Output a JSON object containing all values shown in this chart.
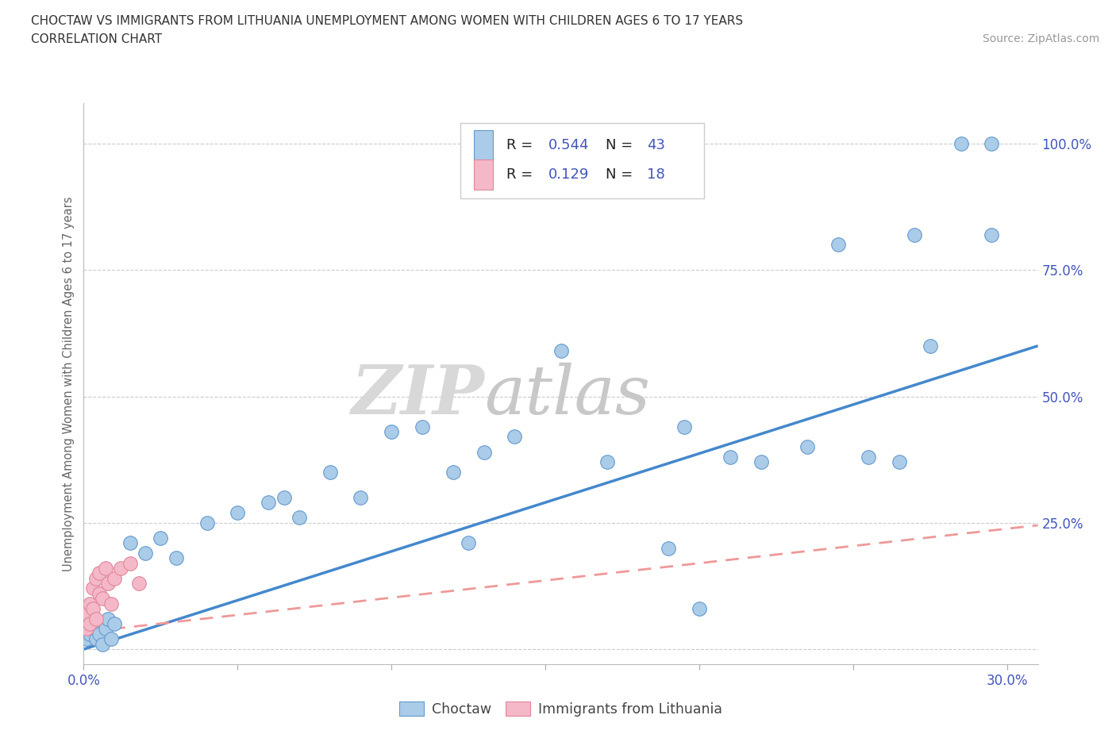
{
  "title_line1": "CHOCTAW VS IMMIGRANTS FROM LITHUANIA UNEMPLOYMENT AMONG WOMEN WITH CHILDREN AGES 6 TO 17 YEARS",
  "title_line2": "CORRELATION CHART",
  "source_text": "Source: ZipAtlas.com",
  "ylabel": "Unemployment Among Women with Children Ages 6 to 17 years",
  "xlim": [
    0.0,
    0.31
  ],
  "ylim": [
    -0.03,
    1.08
  ],
  "choctaw_color": "#aacce8",
  "choctaw_edge_color": "#6699cc",
  "immigrants_color": "#f5b8c8",
  "immigrants_edge_color": "#dd8899",
  "choctaw_line_color": "#4488cc",
  "immigrants_line_color": "#ee9999",
  "bg_color": "#ffffff",
  "grid_color": "#cccccc",
  "title_color": "#333333",
  "axis_tick_color": "#4455bb",
  "axis_label_color": "#666666",
  "legend_R1": "0.544",
  "legend_N1": "43",
  "legend_R2": "0.129",
  "legend_N2": "18",
  "choctaw_x": [
    0.001,
    0.002,
    0.003,
    0.004,
    0.005,
    0.006,
    0.007,
    0.008,
    0.009,
    0.01,
    0.015,
    0.02,
    0.025,
    0.03,
    0.04,
    0.05,
    0.06,
    0.065,
    0.07,
    0.08,
    0.09,
    0.1,
    0.11,
    0.12,
    0.13,
    0.14,
    0.155,
    0.17,
    0.19,
    0.2,
    0.21,
    0.22,
    0.235,
    0.245,
    0.255,
    0.265,
    0.275,
    0.285,
    0.295,
    0.125,
    0.195,
    0.27,
    0.295
  ],
  "choctaw_y": [
    0.02,
    0.03,
    0.04,
    0.02,
    0.03,
    0.01,
    0.04,
    0.06,
    0.02,
    0.05,
    0.21,
    0.19,
    0.22,
    0.18,
    0.25,
    0.27,
    0.29,
    0.3,
    0.26,
    0.35,
    0.3,
    0.43,
    0.44,
    0.35,
    0.39,
    0.42,
    0.59,
    0.37,
    0.2,
    0.08,
    0.38,
    0.37,
    0.4,
    0.8,
    0.38,
    0.37,
    0.6,
    1.0,
    1.0,
    0.21,
    0.44,
    0.82,
    0.82
  ],
  "immigrants_x": [
    0.001,
    0.001,
    0.002,
    0.002,
    0.003,
    0.003,
    0.004,
    0.004,
    0.005,
    0.005,
    0.006,
    0.007,
    0.008,
    0.009,
    0.01,
    0.012,
    0.015,
    0.018
  ],
  "immigrants_y": [
    0.04,
    0.07,
    0.05,
    0.09,
    0.08,
    0.12,
    0.06,
    0.14,
    0.11,
    0.15,
    0.1,
    0.16,
    0.13,
    0.09,
    0.14,
    0.16,
    0.17,
    0.13
  ],
  "choctaw_trend_x": [
    -0.005,
    0.31
  ],
  "choctaw_trend_y": [
    -0.01,
    0.6
  ],
  "immigrants_trend_x": [
    -0.005,
    0.31
  ],
  "immigrants_trend_y": [
    0.03,
    0.245
  ],
  "ytick_positions": [
    0.0,
    0.25,
    0.5,
    0.75,
    1.0
  ],
  "ytick_labels": [
    "",
    "25.0%",
    "50.0%",
    "75.0%",
    "100.0%"
  ],
  "xtick_positions": [
    0.0,
    0.05,
    0.1,
    0.15,
    0.2,
    0.25,
    0.3
  ],
  "xtick_labels": [
    "0.0%",
    "",
    "",
    "",
    "",
    "",
    "30.0%"
  ]
}
